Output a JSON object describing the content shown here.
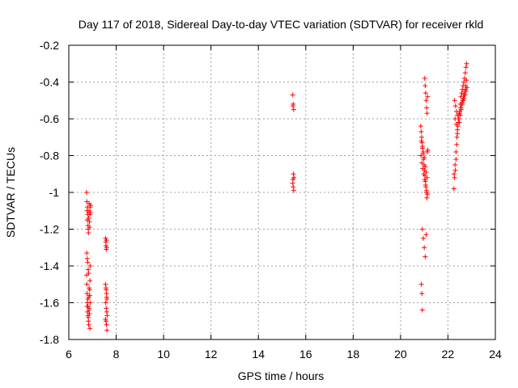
{
  "chart_data": {
    "type": "scatter",
    "title": "Day 117 of 2018, Sidereal Day-to-day VTEC variation (SDTVAR) for receiver rkld",
    "xlabel": "GPS time / hours",
    "ylabel": "SDTVAR / TECUs",
    "xlim": [
      6,
      24
    ],
    "ylim": [
      -1.8,
      -0.2
    ],
    "xticks": [
      6,
      8,
      10,
      12,
      14,
      16,
      18,
      20,
      22,
      24
    ],
    "yticks": [
      -1.8,
      -1.6,
      -1.4,
      -1.2,
      -1.0,
      -0.8,
      -0.6,
      -0.4,
      -0.2
    ],
    "xtick_labels": [
      "6",
      "8",
      "10",
      "12",
      "14",
      "16",
      "18",
      "20",
      "22",
      "24"
    ],
    "ytick_labels": [
      "-1.8",
      "-1.6",
      "-1.4",
      "-1.2",
      "-1",
      "-0.8",
      "-0.6",
      "-0.4",
      "-0.2"
    ],
    "grid": true,
    "marker": "+",
    "marker_color": "#ff0000",
    "series": [
      {
        "name": "SDTVAR",
        "x": [
          6.75,
          6.76,
          6.77,
          6.78,
          6.79,
          6.8,
          6.81,
          6.82,
          6.83,
          6.84,
          6.85,
          6.86,
          6.87,
          6.88,
          6.89,
          6.9,
          6.91,
          6.92,
          6.75,
          6.76,
          6.77,
          6.78,
          6.79,
          6.8,
          6.81,
          6.82,
          6.83,
          6.84,
          6.85,
          6.86,
          6.87,
          6.88,
          6.89,
          6.9,
          6.76,
          6.78,
          6.8,
          6.82,
          6.84,
          6.86,
          6.88,
          6.9,
          6.77,
          6.81,
          6.85,
          6.89,
          7.55,
          7.56,
          7.57,
          7.58,
          7.59,
          7.6,
          7.55,
          7.57,
          7.59,
          7.61,
          7.56,
          7.58,
          7.6,
          7.62,
          7.55,
          7.57,
          7.59,
          7.61,
          7.58,
          7.6,
          15.45,
          15.47,
          15.49,
          15.46,
          15.48,
          15.5,
          15.45,
          15.47,
          15.49,
          15.46,
          20.85,
          20.87,
          20.89,
          20.91,
          20.93,
          20.95,
          20.97,
          20.99,
          21.01,
          21.03,
          21.05,
          21.07,
          21.09,
          21.11,
          21.13,
          21.15,
          20.86,
          20.9,
          20.94,
          20.98,
          21.02,
          21.06,
          21.1,
          21.14,
          20.88,
          20.92,
          20.96,
          21.0,
          21.04,
          21.08,
          21.12,
          21.02,
          21.04,
          21.06,
          21.08,
          21.1,
          21.12,
          21.14,
          20.92,
          20.96,
          21.0,
          21.04,
          21.08,
          20.88,
          20.9,
          20.92,
          22.25,
          22.28,
          22.31,
          22.34,
          22.37,
          22.4,
          22.43,
          22.46,
          22.49,
          22.52,
          22.55,
          22.58,
          22.61,
          22.64,
          22.67,
          22.7,
          22.73,
          22.76,
          22.79,
          22.26,
          22.3,
          22.34,
          22.38,
          22.42,
          22.46,
          22.5,
          22.54,
          22.58,
          22.62,
          22.66,
          22.7,
          22.74,
          22.78,
          22.28,
          22.32,
          22.36,
          22.4,
          22.44,
          22.48,
          22.52,
          22.56,
          22.6,
          22.64,
          22.68,
          22.72,
          22.76,
          22.8,
          22.3,
          22.35,
          22.4,
          22.45,
          22.5,
          22.55,
          22.6,
          22.65,
          22.7,
          22.75
        ],
        "y": [
          -1.0,
          -1.05,
          -1.1,
          -1.15,
          -1.08,
          -1.12,
          -1.18,
          -1.2,
          -1.22,
          -1.14,
          -1.1,
          -1.06,
          -1.16,
          -1.19,
          -1.12,
          -1.08,
          -1.11,
          -1.07,
          -1.45,
          -1.5,
          -1.55,
          -1.6,
          -1.65,
          -1.58,
          -1.62,
          -1.68,
          -1.7,
          -1.72,
          -1.57,
          -1.63,
          -1.66,
          -1.53,
          -1.48,
          -1.4,
          -1.33,
          -1.36,
          -1.38,
          -1.42,
          -1.44,
          -1.52,
          -1.56,
          -1.6,
          -1.62,
          -1.67,
          -1.64,
          -1.74,
          -1.25,
          -1.27,
          -1.29,
          -1.31,
          -1.26,
          -1.3,
          -1.5,
          -1.52,
          -1.55,
          -1.58,
          -1.6,
          -1.63,
          -1.65,
          -1.67,
          -1.69,
          -1.7,
          -1.72,
          -1.75,
          -1.53,
          -1.57,
          -0.47,
          -0.52,
          -0.55,
          -0.53,
          -0.9,
          -0.92,
          -0.95,
          -0.97,
          -0.99,
          -0.93,
          -0.64,
          -0.67,
          -0.7,
          -0.73,
          -0.76,
          -0.79,
          -0.82,
          -0.85,
          -0.88,
          -0.91,
          -0.94,
          -0.97,
          -1.0,
          -1.03,
          -0.78,
          -0.77,
          -0.8,
          -0.84,
          -0.87,
          -0.9,
          -0.93,
          -0.96,
          -0.99,
          -1.01,
          -0.72,
          -0.75,
          -0.78,
          -0.81,
          -0.86,
          -0.89,
          -0.92,
          -0.38,
          -0.42,
          -0.46,
          -0.5,
          -0.54,
          -0.57,
          -0.48,
          -1.2,
          -1.25,
          -1.3,
          -1.35,
          -1.23,
          -1.5,
          -1.55,
          -1.64,
          -0.98,
          -0.92,
          -0.88,
          -0.82,
          -0.74,
          -0.68,
          -0.62,
          -0.58,
          -0.56,
          -0.52,
          -0.48,
          -0.46,
          -0.44,
          -0.42,
          -0.4,
          -0.38,
          -0.35,
          -0.32,
          -0.3,
          -0.9,
          -0.85,
          -0.78,
          -0.7,
          -0.64,
          -0.6,
          -0.56,
          -0.54,
          -0.52,
          -0.5,
          -0.47,
          -0.45,
          -0.42,
          -0.39,
          -0.5,
          -0.53,
          -0.56,
          -0.58,
          -0.6,
          -0.62,
          -0.58,
          -0.55,
          -0.52,
          -0.5,
          -0.49,
          -0.47,
          -0.45,
          -0.43,
          -0.6,
          -0.63,
          -0.66,
          -0.6,
          -0.57,
          -0.54,
          -0.51,
          -0.49,
          -0.47,
          -0.44
        ]
      }
    ]
  }
}
